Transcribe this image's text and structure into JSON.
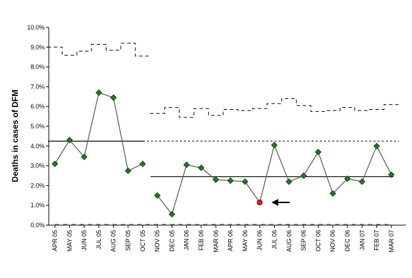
{
  "chart_data": {
    "type": "line",
    "title": "",
    "xlabel": "",
    "ylabel": "Deaths in cases of DFM",
    "ylim": [
      0,
      10
    ],
    "y_ticks": [
      "0.0%",
      "1.0%",
      "2.0%",
      "3.0%",
      "4.0%",
      "5.0%",
      "6.0%",
      "7.0%",
      "8.0%",
      "9.0%",
      "10.0%"
    ],
    "categories": [
      "APR 05",
      "MAY 05",
      "JUN 05",
      "JUL 05",
      "AUG 05",
      "SEP 05",
      "OCT 05",
      "NOV 05",
      "DEC 05",
      "JAN 06",
      "FEB 06",
      "MAR 06",
      "APR 06",
      "MAY 06",
      "JUN 06",
      "JUL 06",
      "AUG 06",
      "SEP 06",
      "OCT 06",
      "NOV 06",
      "DEC 06",
      "JAN 07",
      "FEB 07",
      "MAR 07"
    ],
    "series": [
      {
        "values": [
          3.1,
          4.3,
          3.45,
          6.7,
          6.45,
          2.75,
          3.1,
          1.5,
          0.55,
          3.05,
          2.9,
          2.3,
          2.25,
          2.2,
          1.15,
          4.05,
          2.2,
          2.5,
          3.7,
          1.6,
          2.35,
          2.2,
          4.0,
          2.55
        ],
        "segments": [
          [
            0,
            6
          ],
          [
            7,
            23
          ]
        ]
      }
    ],
    "highlight": {
      "index": 14,
      "color": "#cc2222",
      "annotation": "arrow"
    },
    "center_lines": [
      {
        "from": 0,
        "to": 6,
        "value": 4.25
      },
      {
        "from": 7,
        "to": 23,
        "value": 2.45
      }
    ],
    "reference_line": {
      "value": 4.25,
      "style": "dashed",
      "from": 6,
      "to": 23
    },
    "upper_control_limits": [
      [
        9.0,
        8.6,
        8.8,
        9.15,
        8.85,
        9.2,
        8.55
      ],
      [
        5.65,
        5.95,
        5.45,
        5.9,
        5.55,
        5.85,
        5.8,
        5.9,
        6.15,
        6.4,
        6.05,
        5.75,
        5.8,
        5.95,
        5.8,
        5.85,
        6.1
      ]
    ],
    "lower_control_limit": 0.0,
    "marker_color": "#1f7a1f",
    "line_color": "#555555",
    "grid": false
  }
}
